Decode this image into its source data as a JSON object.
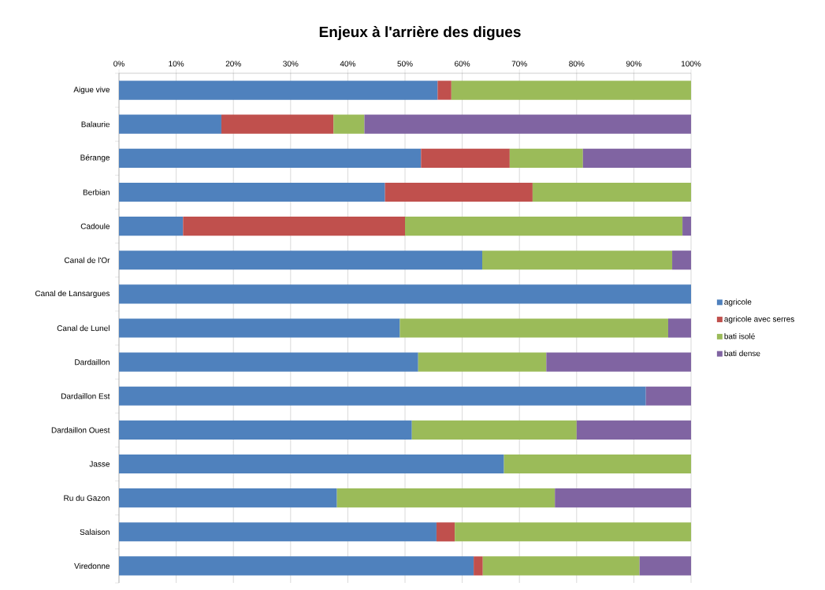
{
  "chart_data": {
    "type": "bar",
    "orientation": "horizontal",
    "stacked": true,
    "title": "Enjeux à l'arrière des digues",
    "categories": [
      "Aigue vive",
      "Balaurie",
      "Bérange",
      "Berbian",
      "Cadoule",
      "Canal de l'Or",
      "Canal de Lansargues",
      "Canal de Lunel",
      "Dardaillon",
      "Dardaillon Est",
      "Dardaillon Ouest",
      "Jasse",
      "Ru du Gazon",
      "Salaison",
      "Viredonne"
    ],
    "series": [
      {
        "name": "agricole",
        "color": "#4f81bd",
        "values": [
          55.7,
          17.9,
          52.8,
          46.5,
          11.2,
          63.5,
          100,
          49.1,
          52.3,
          92.1,
          51.2,
          67.3,
          38.1,
          55.5,
          62.0
        ]
      },
      {
        "name": "agricole avec serres",
        "color": "#c0504d",
        "values": [
          2.4,
          19.6,
          15.5,
          25.8,
          38.8,
          0,
          0,
          0,
          0,
          0,
          0,
          0,
          0,
          3.2,
          1.6
        ]
      },
      {
        "name": "bati isolé",
        "color": "#9bbb59",
        "values": [
          41.9,
          5.4,
          12.8,
          27.7,
          48.5,
          33.2,
          0,
          46.9,
          22.4,
          0,
          28.8,
          32.7,
          38.1,
          41.3,
          27.4
        ]
      },
      {
        "name": "bati dense",
        "color": "#8064a2",
        "values": [
          0,
          57.1,
          18.9,
          0,
          1.5,
          3.3,
          0,
          4.0,
          25.3,
          7.9,
          20.0,
          0,
          23.8,
          0,
          9.0
        ]
      }
    ],
    "xlim": [
      0,
      100
    ],
    "xticks": [
      {
        "value": 0,
        "label": "0%"
      },
      {
        "value": 10,
        "label": "10%"
      },
      {
        "value": 20,
        "label": "20%"
      },
      {
        "value": 30,
        "label": "30%"
      },
      {
        "value": 40,
        "label": "40%"
      },
      {
        "value": 50,
        "label": "50%"
      },
      {
        "value": 60,
        "label": "60%"
      },
      {
        "value": 70,
        "label": "70%"
      },
      {
        "value": 80,
        "label": "80%"
      },
      {
        "value": 90,
        "label": "90%"
      },
      {
        "value": 100,
        "label": "100%"
      }
    ],
    "grid": "x",
    "legend": "right"
  }
}
